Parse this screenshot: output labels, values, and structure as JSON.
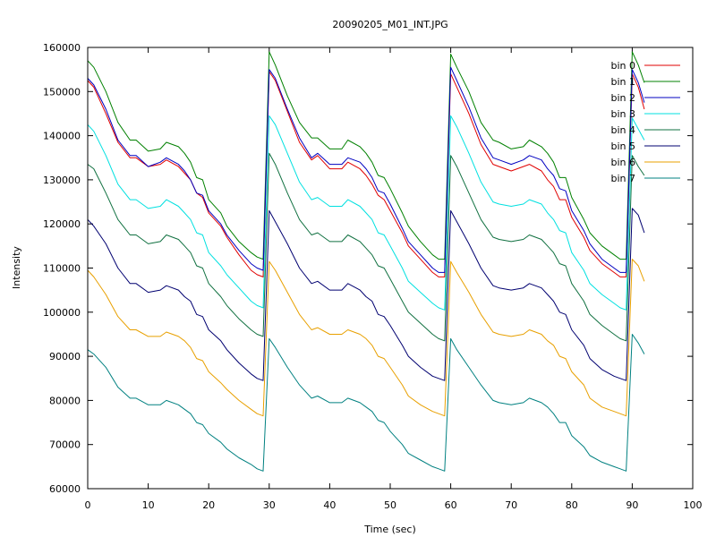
{
  "chart_data": {
    "type": "line",
    "title": "20090205_M01_INT.JPG",
    "xlabel": "Time (sec)",
    "ylabel": "Intensity",
    "xlim": [
      0,
      100
    ],
    "ylim": [
      60000,
      160000
    ],
    "x_ticks": [
      "0",
      "10",
      "20",
      "30",
      "40",
      "50",
      "60",
      "70",
      "80",
      "90",
      "100"
    ],
    "y_ticks": [
      "60000",
      "70000",
      "80000",
      "90000",
      "100000",
      "110000",
      "120000",
      "130000",
      "140000",
      "150000",
      "160000"
    ],
    "grid": false,
    "legend_position": "top-right",
    "series": [
      {
        "name": "bin 0",
        "color": "#e00000",
        "x": [
          0,
          1,
          3,
          5,
          7,
          8,
          10,
          12,
          13,
          15,
          16,
          17,
          18,
          19,
          20,
          22,
          23,
          25,
          27,
          28,
          29,
          30,
          31,
          33,
          35,
          37,
          38,
          40,
          42,
          43,
          45,
          46,
          47,
          48,
          49,
          50,
          52,
          53,
          55,
          57,
          58,
          59,
          60,
          61,
          63,
          65,
          67,
          68,
          70,
          72,
          73,
          75,
          76,
          77,
          78,
          79,
          80,
          82,
          83,
          85,
          87,
          88,
          89,
          90,
          91,
          92
        ],
        "y": [
          152500,
          151000,
          145000,
          138500,
          135000,
          135000,
          133000,
          133500,
          134500,
          133000,
          131500,
          130000,
          127000,
          126000,
          122500,
          119500,
          117000,
          113000,
          109500,
          108500,
          108000,
          154500,
          152500,
          145500,
          138500,
          134500,
          135500,
          132500,
          132500,
          134000,
          132500,
          131000,
          129000,
          126500,
          125500,
          123000,
          118000,
          115000,
          112000,
          109000,
          108000,
          108000,
          154000,
          151000,
          145000,
          138000,
          133500,
          133000,
          132000,
          133000,
          133500,
          132000,
          130000,
          128500,
          125500,
          125500,
          121500,
          117000,
          114000,
          111000,
          109000,
          108000,
          108000,
          154000,
          151000,
          146000
        ]
      },
      {
        "name": "bin 1",
        "color": "#008000",
        "x": [
          0,
          1,
          3,
          5,
          7,
          8,
          10,
          12,
          13,
          15,
          16,
          17,
          18,
          19,
          20,
          22,
          23,
          25,
          27,
          28,
          29,
          30,
          31,
          33,
          35,
          37,
          38,
          40,
          42,
          43,
          45,
          46,
          47,
          48,
          49,
          50,
          52,
          53,
          55,
          57,
          58,
          59,
          60,
          61,
          63,
          65,
          67,
          68,
          70,
          72,
          73,
          75,
          76,
          77,
          78,
          79,
          80,
          82,
          83,
          85,
          87,
          88,
          89,
          90,
          91,
          92
        ],
        "y": [
          157000,
          155500,
          150000,
          143000,
          139000,
          139000,
          136500,
          137000,
          138500,
          137500,
          136000,
          134000,
          130500,
          130000,
          125500,
          122500,
          119500,
          116000,
          113500,
          112500,
          112000,
          159000,
          156000,
          149000,
          143000,
          139500,
          139500,
          137000,
          137000,
          139000,
          137500,
          136000,
          134000,
          131000,
          130500,
          128000,
          122500,
          119500,
          116000,
          113000,
          112000,
          112000,
          158500,
          155500,
          150000,
          143000,
          139000,
          138500,
          137000,
          137500,
          139000,
          137500,
          136000,
          134000,
          130500,
          130500,
          126000,
          121000,
          118000,
          115000,
          113000,
          112000,
          112000,
          159000,
          156000,
          152000
        ]
      },
      {
        "name": "bin 2",
        "color": "#0000c0",
        "x": [
          0,
          1,
          3,
          5,
          7,
          8,
          10,
          12,
          13,
          15,
          16,
          17,
          18,
          19,
          20,
          22,
          23,
          25,
          27,
          28,
          29,
          30,
          31,
          33,
          35,
          37,
          38,
          40,
          42,
          43,
          45,
          46,
          47,
          48,
          49,
          50,
          52,
          53,
          55,
          57,
          58,
          59,
          60,
          61,
          63,
          65,
          67,
          68,
          70,
          72,
          73,
          75,
          76,
          77,
          78,
          79,
          80,
          82,
          83,
          85,
          87,
          88,
          89,
          90,
          91,
          92
        ],
        "y": [
          153000,
          151500,
          146000,
          139000,
          135500,
          135500,
          133000,
          134000,
          135000,
          133500,
          132000,
          130000,
          127000,
          126500,
          123000,
          120000,
          117500,
          114000,
          111000,
          110000,
          109500,
          155000,
          153000,
          146000,
          139500,
          135000,
          136000,
          133500,
          133500,
          135000,
          134000,
          132500,
          130500,
          127500,
          127000,
          124500,
          119000,
          116000,
          113000,
          110000,
          109000,
          109000,
          155500,
          152500,
          146500,
          139500,
          135000,
          134500,
          133500,
          134500,
          135500,
          134500,
          132500,
          131000,
          128000,
          127500,
          123000,
          118500,
          115500,
          112000,
          110000,
          109000,
          109000,
          155000,
          152000,
          147500
        ]
      },
      {
        "name": "bin 3",
        "color": "#00e0e0",
        "x": [
          0,
          1,
          3,
          5,
          7,
          8,
          10,
          12,
          13,
          15,
          16,
          17,
          18,
          19,
          20,
          22,
          23,
          25,
          27,
          28,
          29,
          30,
          31,
          33,
          35,
          37,
          38,
          40,
          42,
          43,
          45,
          46,
          47,
          48,
          49,
          50,
          52,
          53,
          55,
          57,
          58,
          59,
          60,
          61,
          63,
          65,
          67,
          68,
          70,
          72,
          73,
          75,
          76,
          77,
          78,
          79,
          80,
          82,
          83,
          85,
          87,
          88,
          89,
          90,
          91,
          92
        ],
        "y": [
          142500,
          141000,
          135500,
          129000,
          125500,
          125500,
          123500,
          124000,
          125500,
          124000,
          122500,
          121000,
          118000,
          117500,
          113500,
          110500,
          108500,
          105500,
          102500,
          101500,
          101000,
          144500,
          142500,
          136000,
          129500,
          125500,
          126000,
          124000,
          124000,
          125500,
          124000,
          122500,
          121000,
          118000,
          117500,
          115000,
          110000,
          107000,
          104500,
          102000,
          101000,
          100500,
          144500,
          142000,
          136000,
          129500,
          125000,
          124500,
          124000,
          124500,
          125500,
          124500,
          122500,
          121000,
          118500,
          118000,
          113500,
          109500,
          106500,
          104000,
          102000,
          101000,
          100500,
          144000,
          141500,
          139000
        ]
      },
      {
        "name": "bin 4",
        "color": "#107040",
        "x": [
          0,
          1,
          3,
          5,
          7,
          8,
          10,
          12,
          13,
          15,
          16,
          17,
          18,
          19,
          20,
          22,
          23,
          25,
          27,
          28,
          29,
          30,
          31,
          33,
          35,
          37,
          38,
          40,
          42,
          43,
          45,
          46,
          47,
          48,
          49,
          50,
          52,
          53,
          55,
          57,
          58,
          59,
          60,
          61,
          63,
          65,
          67,
          68,
          70,
          72,
          73,
          75,
          76,
          77,
          78,
          79,
          80,
          82,
          83,
          85,
          87,
          88,
          89,
          90,
          91,
          92
        ],
        "y": [
          133500,
          132500,
          127000,
          121000,
          117500,
          117500,
          115500,
          116000,
          117500,
          116500,
          115000,
          113500,
          110500,
          110000,
          106500,
          103500,
          101500,
          98500,
          96000,
          95000,
          94500,
          136000,
          133500,
          127000,
          121000,
          117500,
          118000,
          116000,
          116000,
          117500,
          116000,
          114500,
          113000,
          110500,
          110000,
          107500,
          102500,
          100000,
          97500,
          95000,
          94000,
          93500,
          135500,
          133000,
          127000,
          121000,
          117000,
          116500,
          116000,
          116500,
          117500,
          116500,
          115000,
          113500,
          111000,
          110500,
          106500,
          102500,
          99500,
          97000,
          95000,
          94000,
          93500,
          135500,
          133000,
          131000
        ]
      },
      {
        "name": "bin 5",
        "color": "#000070",
        "x": [
          0,
          1,
          3,
          5,
          7,
          8,
          10,
          12,
          13,
          15,
          16,
          17,
          18,
          19,
          20,
          22,
          23,
          25,
          27,
          28,
          29,
          30,
          31,
          33,
          35,
          37,
          38,
          40,
          42,
          43,
          45,
          46,
          47,
          48,
          49,
          50,
          52,
          53,
          55,
          57,
          58,
          59,
          60,
          61,
          63,
          65,
          67,
          68,
          70,
          72,
          73,
          75,
          76,
          77,
          78,
          79,
          80,
          82,
          83,
          85,
          87,
          88,
          89,
          90,
          91,
          92
        ],
        "y": [
          121000,
          119500,
          115500,
          110000,
          106500,
          106500,
          104500,
          105000,
          106000,
          105000,
          103500,
          102500,
          99500,
          99000,
          96000,
          93500,
          91500,
          88500,
          86000,
          85000,
          84500,
          123000,
          120500,
          115500,
          110000,
          106500,
          107000,
          105000,
          105000,
          106500,
          105000,
          103500,
          102500,
          99500,
          99000,
          97000,
          92500,
          90000,
          87500,
          85500,
          85000,
          84500,
          123000,
          120500,
          115500,
          110000,
          106000,
          105500,
          105000,
          105500,
          106500,
          105500,
          104000,
          102500,
          100000,
          99500,
          96000,
          92500,
          89500,
          87000,
          85500,
          85000,
          84500,
          123500,
          122000,
          118000
        ]
      },
      {
        "name": "bin 6",
        "color": "#e8a000",
        "x": [
          0,
          1,
          3,
          5,
          7,
          8,
          10,
          12,
          13,
          15,
          16,
          17,
          18,
          19,
          20,
          22,
          23,
          25,
          27,
          28,
          29,
          30,
          31,
          33,
          35,
          37,
          38,
          40,
          42,
          43,
          45,
          46,
          47,
          48,
          49,
          50,
          52,
          53,
          55,
          57,
          58,
          59,
          60,
          61,
          63,
          65,
          67,
          68,
          70,
          72,
          73,
          75,
          76,
          77,
          78,
          79,
          80,
          82,
          83,
          85,
          87,
          88,
          89,
          90,
          91,
          92
        ],
        "y": [
          109500,
          108000,
          104000,
          99000,
          96000,
          96000,
          94500,
          94500,
          95500,
          94500,
          93500,
          92000,
          89500,
          89000,
          86500,
          84000,
          82500,
          80000,
          78000,
          77000,
          76500,
          111500,
          109500,
          104500,
          99500,
          96000,
          96500,
          95000,
          95000,
          96000,
          95000,
          94000,
          92500,
          90000,
          89500,
          87500,
          83500,
          81000,
          79000,
          77500,
          77000,
          76500,
          111500,
          109000,
          104500,
          99500,
          95500,
          95000,
          94500,
          95000,
          96000,
          95000,
          93500,
          92500,
          90000,
          89500,
          86500,
          83500,
          80500,
          78500,
          77500,
          77000,
          76500,
          112000,
          110500,
          107000
        ]
      },
      {
        "name": "bin 7",
        "color": "#008080",
        "x": [
          0,
          1,
          3,
          5,
          7,
          8,
          10,
          12,
          13,
          15,
          16,
          17,
          18,
          19,
          20,
          22,
          23,
          25,
          27,
          28,
          29,
          30,
          31,
          33,
          35,
          37,
          38,
          40,
          42,
          43,
          45,
          46,
          47,
          48,
          49,
          50,
          52,
          53,
          55,
          57,
          58,
          59,
          60,
          61,
          63,
          65,
          67,
          68,
          70,
          72,
          73,
          75,
          76,
          77,
          78,
          79,
          80,
          82,
          83,
          85,
          87,
          88,
          89,
          90,
          91,
          92
        ],
        "y": [
          91500,
          90500,
          87500,
          83000,
          80500,
          80500,
          79000,
          79000,
          80000,
          79000,
          78000,
          77000,
          75000,
          74500,
          72500,
          70500,
          69000,
          67000,
          65500,
          64500,
          64000,
          94000,
          92000,
          87500,
          83500,
          80500,
          81000,
          79500,
          79500,
          80500,
          79500,
          78500,
          77500,
          75500,
          75000,
          73000,
          70000,
          68000,
          66500,
          65000,
          64500,
          64000,
          94000,
          91500,
          87500,
          83500,
          80000,
          79500,
          79000,
          79500,
          80500,
          79500,
          78500,
          77000,
          75000,
          75000,
          72000,
          69500,
          67500,
          66000,
          65000,
          64500,
          64000,
          95000,
          93000,
          90500
        ]
      }
    ]
  }
}
